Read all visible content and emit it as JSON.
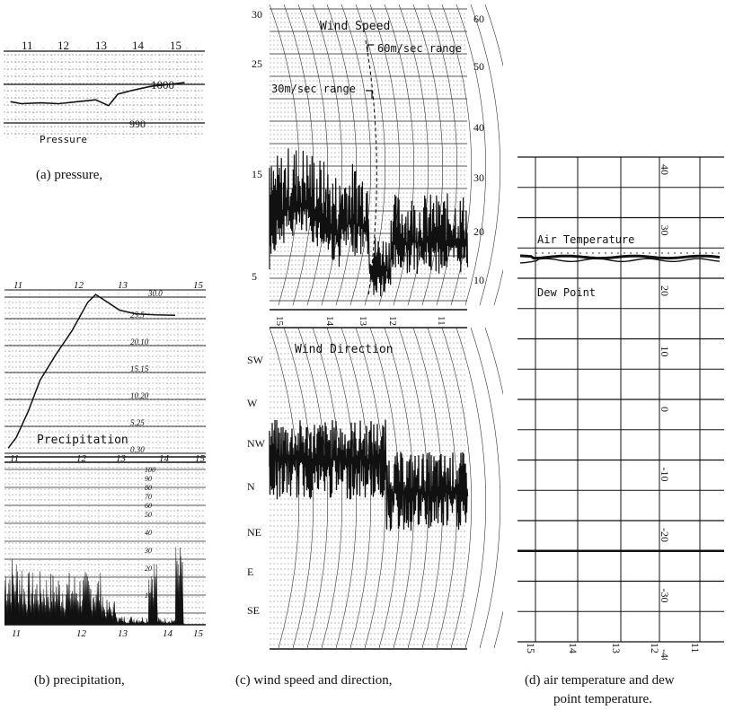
{
  "captions": {
    "a": "(a)   pressure,",
    "b": "(b)   precipitation,",
    "c": "(c)   wind speed and direction,",
    "d1": "(d)   air temperature and dew",
    "d2": "point temperature."
  },
  "chart_data": [
    {
      "id": "pressure",
      "type": "line",
      "label": "Pressure",
      "x_ticks": [
        "11",
        "12",
        "13",
        "14",
        "15"
      ],
      "y_labels": [
        "1000",
        "990"
      ],
      "ylim": [
        985,
        1003
      ],
      "x": [
        10.7,
        11.0,
        11.5,
        12.0,
        12.5,
        13.0,
        13.35,
        13.6,
        14.0,
        14.5,
        15.0,
        15.4
      ],
      "values": [
        995.5,
        995.0,
        995.2,
        995.0,
        995.5,
        996.0,
        994.5,
        997.5,
        998.5,
        999.5,
        1000.0,
        1000.5
      ]
    },
    {
      "id": "precipitation",
      "type": "line",
      "label": "Precipitation",
      "top_x_ticks": [
        "11",
        "12",
        "13",
        "15"
      ],
      "top_y_labels": [
        "30.0",
        "25.5",
        "20.10",
        "15.15",
        "10.20",
        "5.25",
        "0.30"
      ],
      "bottom_x_ticks": [
        "11",
        "12",
        "13",
        "14",
        "15"
      ],
      "bottom_mid_ticks": [
        "11",
        "12",
        "13",
        "14",
        "15"
      ],
      "bottom_y_labels": [
        "100",
        "90",
        "80",
        "70",
        "60",
        "50",
        "40",
        "30",
        "20",
        "10"
      ],
      "cumulative": {
        "x": [
          10.8,
          11.0,
          11.3,
          11.6,
          12.0,
          12.4,
          12.8,
          13.0,
          13.3,
          13.6,
          14.0,
          14.5,
          15.0
        ],
        "values": [
          1.0,
          3.0,
          8.0,
          14.0,
          19.0,
          23.5,
          29.0,
          30.5,
          29.0,
          27.5,
          26.8,
          26.6,
          26.5
        ]
      }
    },
    {
      "id": "wind_speed",
      "type": "area",
      "label": "Wind Speed",
      "annotations": [
        "60m/sec range",
        "30m/sec range"
      ],
      "left_y_labels": [
        "30",
        "25",
        "15",
        "5"
      ],
      "right_y_labels": [
        "60",
        "50",
        "40",
        "30",
        "20",
        "10"
      ],
      "x_ticks": [
        "15",
        "14",
        "13",
        "12",
        "11"
      ]
    },
    {
      "id": "wind_direction",
      "type": "area",
      "label": "Wind Direction",
      "y_labels": [
        "SW",
        "W",
        "NW",
        "N",
        "NE",
        "E",
        "SE"
      ]
    },
    {
      "id": "temperature",
      "type": "line",
      "labels": [
        "Air Temperature",
        "Dew Point"
      ],
      "y_labels": [
        "40",
        "30",
        "20",
        "10",
        "0",
        "-10",
        "-20",
        "-30",
        "-40"
      ],
      "x_ticks": [
        "15",
        "14",
        "13",
        "12",
        "11"
      ],
      "ylim": [
        -40,
        40
      ],
      "air_temperature": 23.5,
      "dew_point": 23.0
    }
  ]
}
